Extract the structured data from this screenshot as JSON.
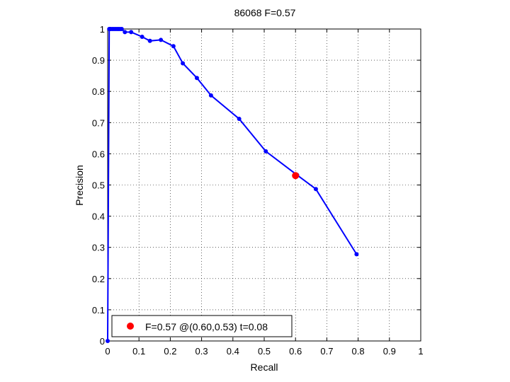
{
  "chart_data": {
    "type": "line",
    "title": "86068 F=0.57",
    "xlabel": "Recall",
    "ylabel": "Precision",
    "xlim": [
      0,
      1
    ],
    "ylim": [
      0,
      1
    ],
    "grid": true,
    "xticks": [
      "0",
      "0.1",
      "0.2",
      "0.3",
      "0.4",
      "0.5",
      "0.6",
      "0.7",
      "0.8",
      "0.9",
      "1"
    ],
    "yticks": [
      "0",
      "0.1",
      "0.2",
      "0.3",
      "0.4",
      "0.5",
      "0.6",
      "0.7",
      "0.8",
      "0.9",
      "1"
    ],
    "series": [
      {
        "color": "#0000ff",
        "x": [
          0.0,
          0.005,
          0.007,
          0.01,
          0.015,
          0.02,
          0.025,
          0.03,
          0.035,
          0.04,
          0.045,
          0.055,
          0.075,
          0.11,
          0.135,
          0.17,
          0.21,
          0.24,
          0.285,
          0.33,
          0.42,
          0.505,
          0.605,
          0.665,
          0.795
        ],
        "y": [
          0.0,
          1.0,
          1.0,
          1.0,
          1.0,
          1.0,
          1.0,
          1.0,
          1.0,
          1.0,
          1.0,
          0.99,
          0.99,
          0.975,
          0.962,
          0.965,
          0.945,
          0.89,
          0.843,
          0.787,
          0.712,
          0.608,
          0.532,
          0.487,
          0.278
        ]
      }
    ],
    "marker": {
      "x": 0.6,
      "y": 0.53,
      "color": "#ff0000"
    },
    "legend": {
      "position": "bottom-left",
      "entries": [
        {
          "label": "F=0.57 @(0.60,0.53) t=0.08",
          "color": "#ff0000"
        }
      ]
    }
  }
}
